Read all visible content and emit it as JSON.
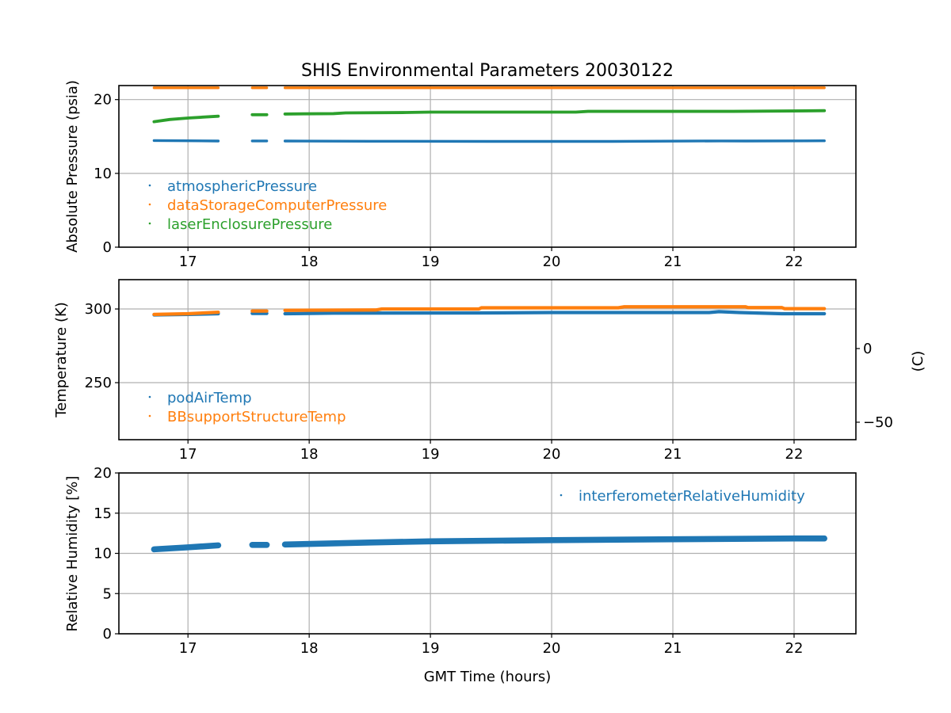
{
  "chart_data": [
    {
      "type": "scatter",
      "title": "SHIS Environmental Parameters 20030122",
      "xlabel": "",
      "ylabel": "Absolute Pressure (psia)",
      "xlim": [
        16.43,
        22.51
      ],
      "ylim": [
        0,
        21.9
      ],
      "xticks": [
        "17",
        "18",
        "19",
        "20",
        "21",
        "22"
      ],
      "yticks": [
        "0",
        "10",
        "20"
      ],
      "ytick_values": [
        0,
        10,
        20
      ],
      "grid": true,
      "legend_position": "lower-left",
      "series": [
        {
          "name": "atmosphericPressure",
          "color": "#1f77b4",
          "band": 0.15,
          "segments": [
            [
              [
                16.72,
                14.45
              ],
              [
                17.0,
                14.42
              ],
              [
                17.25,
                14.38
              ]
            ],
            [
              [
                17.53,
                14.4
              ],
              [
                17.65,
                14.4
              ]
            ],
            [
              [
                17.8,
                14.38
              ],
              [
                18.5,
                14.35
              ],
              [
                19.5,
                14.33
              ],
              [
                20.5,
                14.33
              ],
              [
                21.4,
                14.4
              ],
              [
                21.6,
                14.38
              ],
              [
                22.25,
                14.42
              ]
            ]
          ]
        },
        {
          "name": "dataStorageComputerPressure",
          "color": "#ff7f0e",
          "band": 0.15,
          "segments": [
            [
              [
                16.72,
                21.6
              ],
              [
                17.25,
                21.6
              ]
            ],
            [
              [
                17.53,
                21.6
              ],
              [
                17.65,
                21.6
              ]
            ],
            [
              [
                17.8,
                21.6
              ],
              [
                22.25,
                21.6
              ]
            ]
          ]
        },
        {
          "name": "laserEnclosurePressure",
          "color": "#2ca02c",
          "band": 0.2,
          "segments": [
            [
              [
                16.72,
                17.0
              ],
              [
                16.85,
                17.3
              ],
              [
                17.0,
                17.5
              ],
              [
                17.25,
                17.75
              ]
            ],
            [
              [
                17.53,
                17.95
              ],
              [
                17.65,
                17.95
              ]
            ],
            [
              [
                17.8,
                18.05
              ],
              [
                18.2,
                18.1
              ],
              [
                18.3,
                18.2
              ],
              [
                18.8,
                18.25
              ],
              [
                19.0,
                18.3
              ],
              [
                20.2,
                18.3
              ],
              [
                20.3,
                18.4
              ],
              [
                21.5,
                18.4
              ],
              [
                22.25,
                18.5
              ]
            ]
          ]
        }
      ]
    },
    {
      "type": "scatter",
      "title": "",
      "xlabel": "",
      "ylabel": "Temperature (K)",
      "y2label": "(C)",
      "xlim": [
        16.43,
        22.51
      ],
      "ylim": [
        211.3,
        319.9
      ],
      "xticks": [
        "17",
        "18",
        "19",
        "20",
        "21",
        "22"
      ],
      "yticks": [
        "250",
        "300"
      ],
      "ytick_values": [
        250,
        300
      ],
      "y2ticks": [
        "0",
        "−50"
      ],
      "y2tick_values": [
        0,
        -50
      ],
      "grid": true,
      "legend_position": "lower-left",
      "series": [
        {
          "name": "podAirTemp",
          "color": "#1f77b4",
          "band": 1.2,
          "segments": [
            [
              [
                16.72,
                296.0
              ],
              [
                17.0,
                296.3
              ],
              [
                17.25,
                296.8
              ]
            ],
            [
              [
                17.53,
                297.0
              ],
              [
                17.65,
                297.0
              ]
            ],
            [
              [
                17.8,
                296.8
              ],
              [
                18.2,
                297.2
              ],
              [
                19.4,
                297.3
              ],
              [
                20.0,
                297.6
              ],
              [
                21.3,
                297.6
              ],
              [
                21.38,
                298.2
              ],
              [
                21.55,
                297.6
              ],
              [
                21.9,
                296.8
              ],
              [
                22.25,
                296.8
              ]
            ]
          ]
        },
        {
          "name": "BBsupportStructureTemp",
          "color": "#ff7f0e",
          "band": 1.2,
          "segments": [
            [
              [
                16.72,
                296.3
              ],
              [
                17.0,
                296.8
              ],
              [
                17.25,
                297.8
              ]
            ],
            [
              [
                17.53,
                298.6
              ],
              [
                17.65,
                298.6
              ]
            ],
            [
              [
                17.8,
                299.1
              ],
              [
                18.55,
                299.3
              ],
              [
                18.6,
                300.0
              ],
              [
                19.4,
                300.0
              ],
              [
                19.42,
                300.8
              ],
              [
                20.55,
                300.8
              ],
              [
                20.6,
                301.5
              ],
              [
                21.6,
                301.5
              ],
              [
                21.62,
                300.9
              ],
              [
                21.9,
                300.9
              ],
              [
                21.92,
                300.2
              ],
              [
                22.25,
                300.2
              ]
            ]
          ]
        }
      ]
    },
    {
      "type": "scatter",
      "title": "",
      "xlabel": "GMT Time (hours)",
      "ylabel": "Relative Humidity [%]",
      "xlim": [
        16.43,
        22.51
      ],
      "ylim": [
        0,
        20
      ],
      "xticks": [
        "17",
        "18",
        "19",
        "20",
        "21",
        "22"
      ],
      "yticks": [
        "0",
        "5",
        "10",
        "15",
        "20"
      ],
      "ytick_values": [
        0,
        5,
        10,
        15,
        20
      ],
      "grid": true,
      "legend_position": "upper-right",
      "series": [
        {
          "name": "interferometerRelativeHumidity",
          "color": "#1f77b4",
          "band": 0.55,
          "segments": [
            [
              [
                16.72,
                10.5
              ],
              [
                17.0,
                10.75
              ],
              [
                17.25,
                11.0
              ]
            ],
            [
              [
                17.53,
                11.05
              ],
              [
                17.65,
                11.05
              ]
            ],
            [
              [
                17.8,
                11.1
              ],
              [
                18.5,
                11.35
              ],
              [
                19.0,
                11.5
              ],
              [
                20.0,
                11.65
              ],
              [
                21.0,
                11.75
              ],
              [
                22.0,
                11.85
              ],
              [
                22.25,
                11.85
              ]
            ]
          ]
        }
      ]
    }
  ]
}
